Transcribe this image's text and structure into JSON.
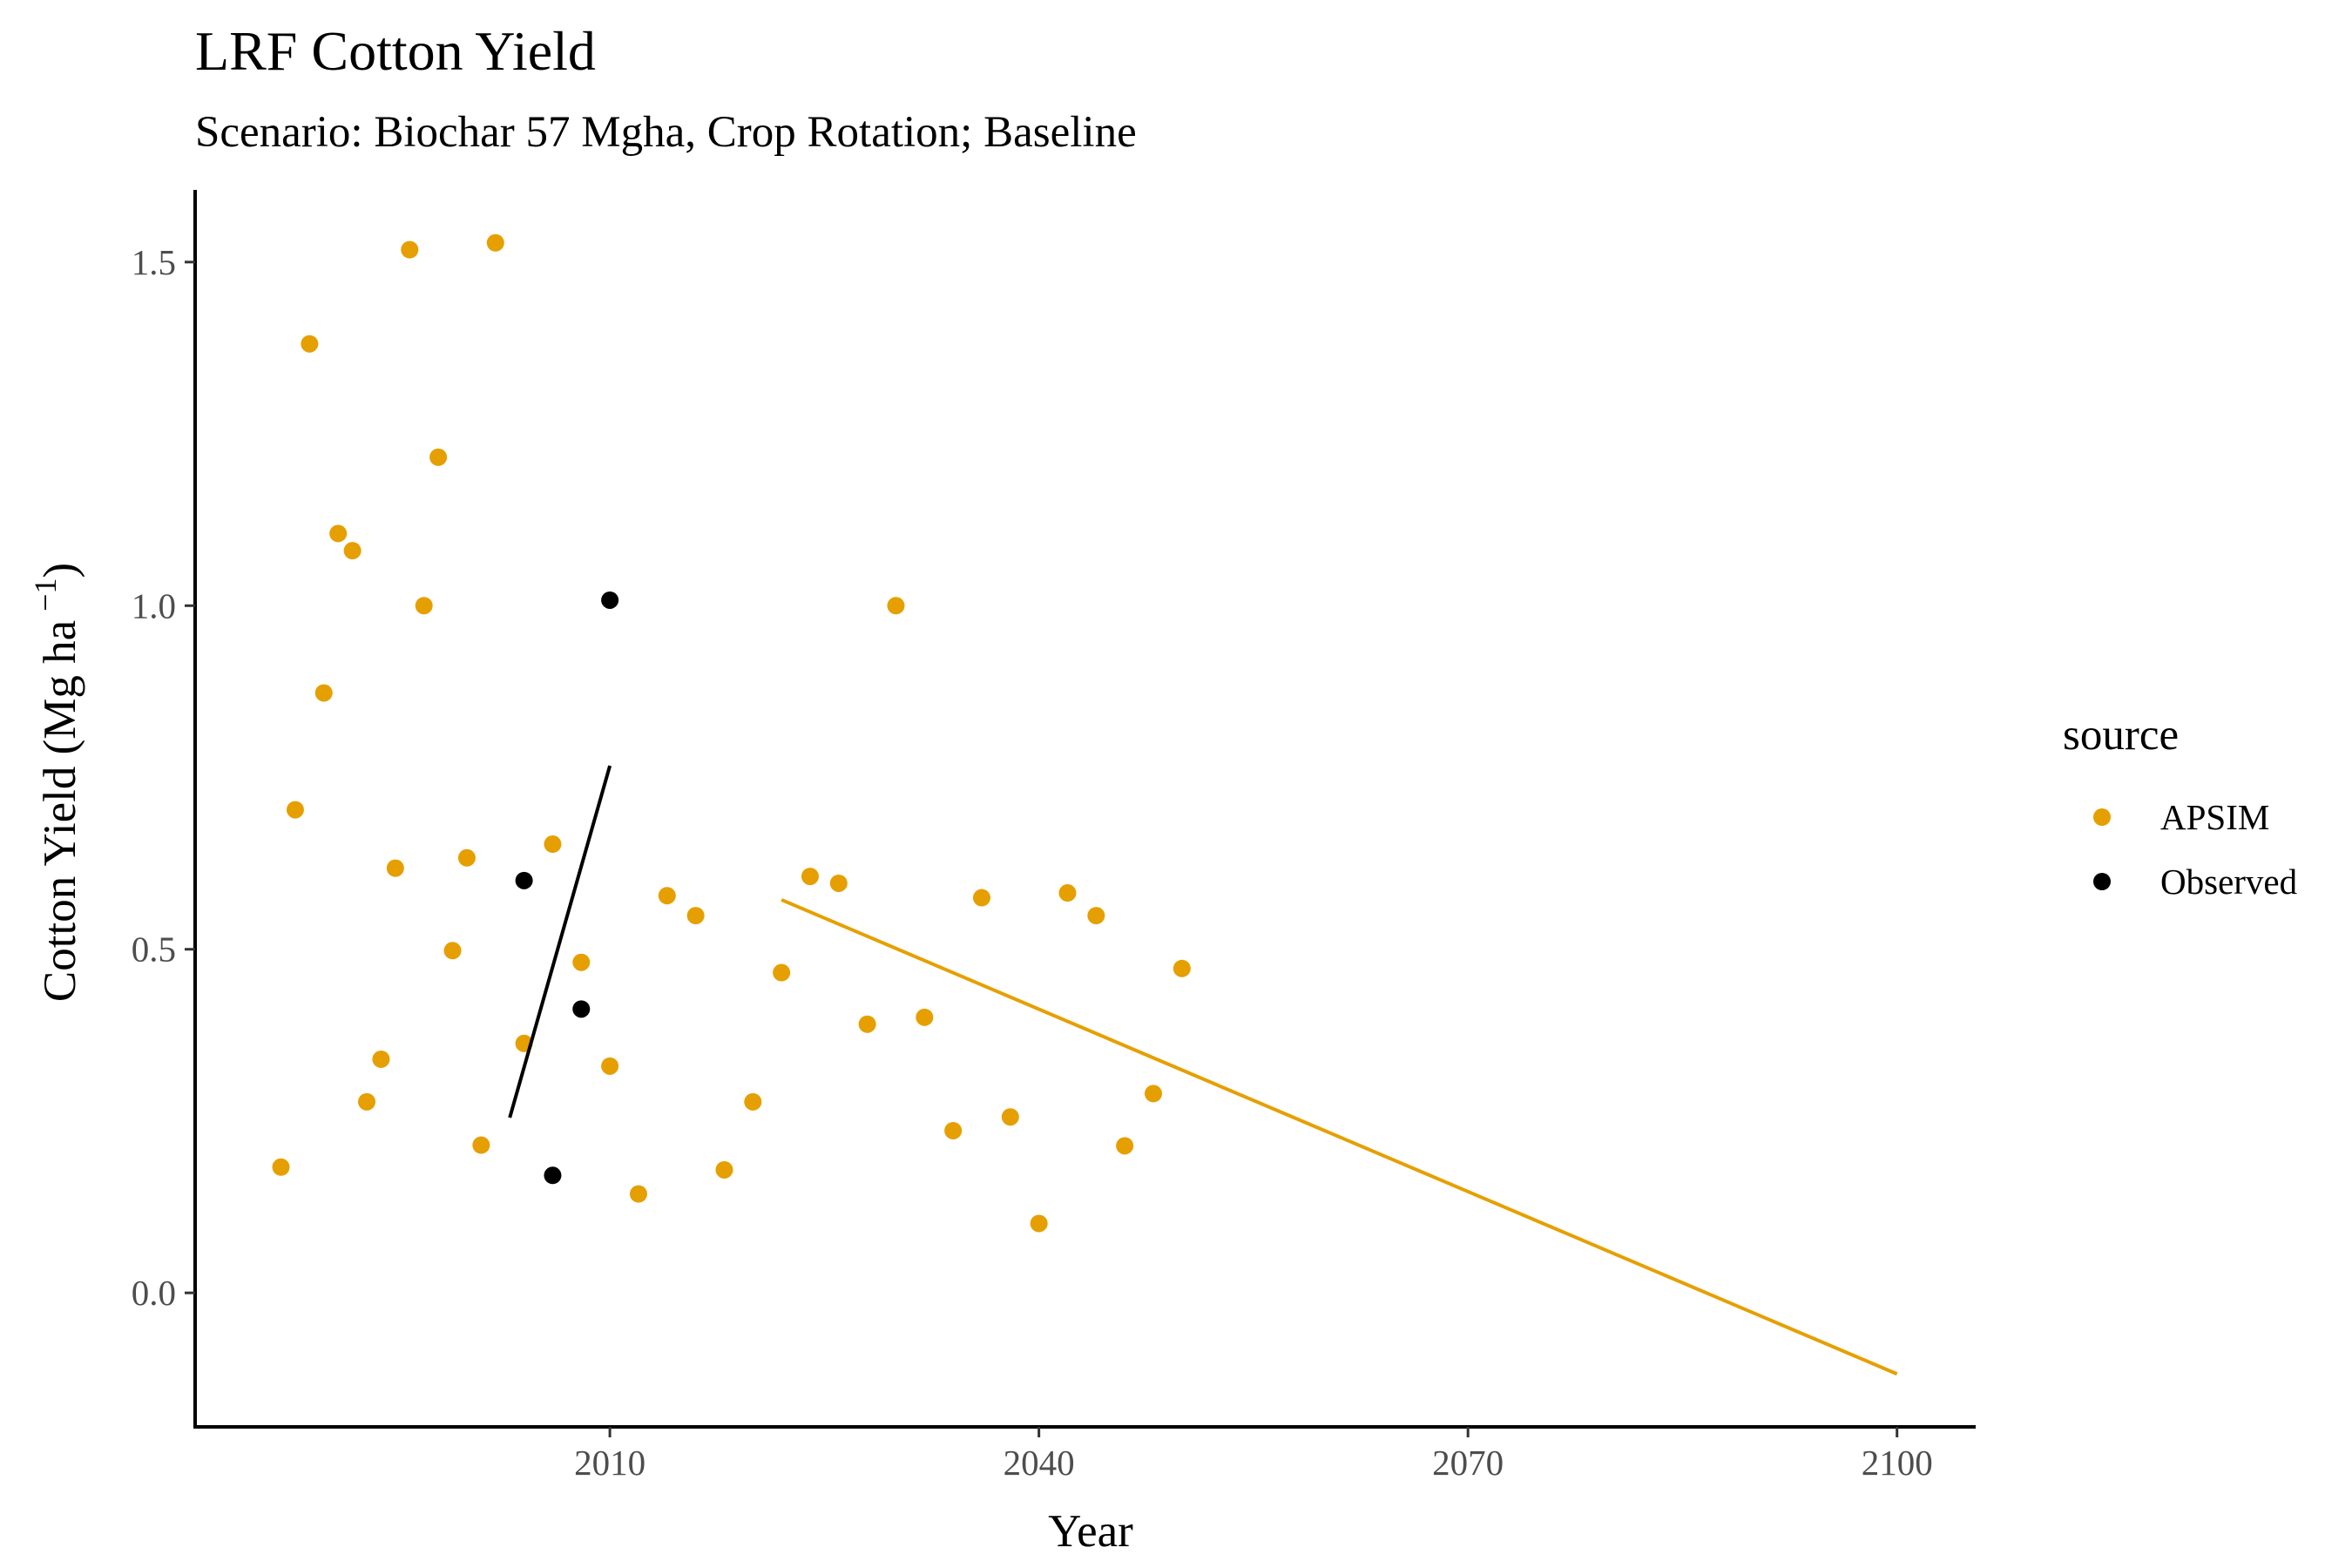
{
  "chart_data": {
    "type": "scatter",
    "title": "LRF Cotton Yield",
    "subtitle": "Scenario: Biochar 57 Mgha, Crop Rotation; Baseline",
    "xlabel": "Year",
    "ylabel_main": "Cotton Yield (Mg ha",
    "ylabel_sup": "−1",
    "ylabel_close": ")",
    "xlim": [
      1981,
      2105.5
    ],
    "ylim": [
      -0.195,
      1.605
    ],
    "xticks": [
      2010,
      2040,
      2070,
      2100
    ],
    "xtick_labels": [
      "2010",
      "2040",
      "2070",
      "2100"
    ],
    "yticks": [
      0.0,
      0.5,
      1.0,
      1.5
    ],
    "ytick_labels": [
      "0.0",
      "0.5",
      "1.0",
      "1.5"
    ],
    "legend": {
      "title": "source",
      "position": "right"
    },
    "series": [
      {
        "name": "APSIM",
        "color": "#E69F00",
        "points": [
          [
            1987,
            0.183
          ],
          [
            1988,
            0.703
          ],
          [
            1989,
            1.381
          ],
          [
            1990,
            0.873
          ],
          [
            1991,
            1.105
          ],
          [
            1992,
            1.08
          ],
          [
            1993,
            0.278
          ],
          [
            1994,
            0.34
          ],
          [
            1995,
            0.618
          ],
          [
            1996,
            1.518
          ],
          [
            1997,
            1.0
          ],
          [
            1998,
            1.216
          ],
          [
            1999,
            0.498
          ],
          [
            2000,
            0.633
          ],
          [
            2001,
            0.215
          ],
          [
            2002,
            1.528
          ],
          [
            2004,
            0.363
          ],
          [
            2006,
            0.653
          ],
          [
            2008,
            0.481
          ],
          [
            2010,
            0.33
          ],
          [
            2012,
            0.144
          ],
          [
            2014,
            0.578
          ],
          [
            2016,
            0.549
          ],
          [
            2018,
            0.179
          ],
          [
            2020,
            0.278
          ],
          [
            2022,
            0.466
          ],
          [
            2024,
            0.606
          ],
          [
            2026,
            0.596
          ],
          [
            2028,
            0.391
          ],
          [
            2030,
            1.0
          ],
          [
            2032,
            0.401
          ],
          [
            2034,
            0.236
          ],
          [
            2036,
            0.575
          ],
          [
            2038,
            0.256
          ],
          [
            2040,
            0.101
          ],
          [
            2042,
            0.582
          ],
          [
            2044,
            0.549
          ],
          [
            2046,
            0.214
          ],
          [
            2048,
            0.29
          ],
          [
            2050,
            0.472
          ]
        ],
        "trend": [
          [
            2022,
            0.572
          ],
          [
            2100,
            -0.118
          ]
        ]
      },
      {
        "name": "Observed",
        "color": "#000000",
        "points": [
          [
            2004,
            0.6
          ],
          [
            2006,
            0.171
          ],
          [
            2008,
            0.413
          ],
          [
            2010,
            1.008
          ]
        ],
        "trend": [
          [
            2003,
            0.255
          ],
          [
            2010,
            0.767
          ]
        ]
      }
    ]
  }
}
